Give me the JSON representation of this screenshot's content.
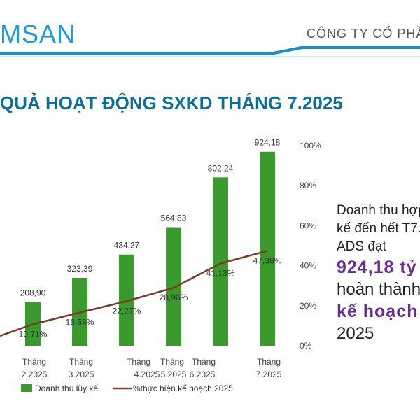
{
  "header": {
    "logo_text": "MSAN",
    "company_text": "CÔNG TY CỔ PHẦN"
  },
  "slide": {
    "title": "QUẢ HOẠT ĐỘNG SXKD THÁNG 7.2025"
  },
  "sidebar": {
    "line1": "Doanh thu hợp",
    "line2": "kế đến hết T7.",
    "line3": "ADS đạt",
    "value": "924,18 tỷ",
    "line4": "hoàn thành",
    "plan": "kế hoạch",
    "year": "2025"
  },
  "colors": {
    "bar": "#3a9a2e",
    "line": "#7a3b22",
    "logo": "#1f9bd7",
    "title": "#0f6e96",
    "highlight": "#6a2c91",
    "header_band": "#1a8fc4"
  },
  "chart_data": {
    "type": "bar+line",
    "categories": [
      "Tháng 2.2025",
      "Tháng 3.2025",
      "Tháng 4.2025",
      "Tháng 5.2025",
      "Tháng 6.2025",
      "Tháng 7.2025"
    ],
    "category_labels": [
      [
        "Tháng",
        "2.2025"
      ],
      [
        "Tháng",
        "3.2025"
      ],
      [
        "Tháng",
        "4.2025"
      ],
      [
        "Tháng",
        "5.2025"
      ],
      [
        "Tháng",
        "6.2025"
      ],
      [
        "Tháng",
        "7.2025"
      ]
    ],
    "series": [
      {
        "name": "Doanh thu lũy kế",
        "type": "bar",
        "values": [
          208.9,
          323.39,
          434.27,
          564.83,
          802.24,
          924.18
        ],
        "labels": [
          "208,90",
          "323,39",
          "434,27",
          "564,83",
          "802,24",
          "924,18"
        ]
      },
      {
        "name": "%thực hiện kế hoạch 2025",
        "type": "line",
        "axis": "right",
        "values": [
          10.71,
          16.58,
          22.27,
          28.96,
          41.13,
          47.38
        ],
        "labels": [
          "10,71%",
          "16,58%",
          "22,27%",
          "28,96%",
          "41,13%",
          "47,38%"
        ]
      }
    ],
    "right_axis": {
      "ticks": [
        "0%",
        "20%",
        "40%",
        "60%",
        "80%",
        "100%"
      ],
      "range": [
        0,
        100
      ]
    },
    "left_axis_range": [
      0,
      1000
    ],
    "legend_position": "bottom"
  }
}
